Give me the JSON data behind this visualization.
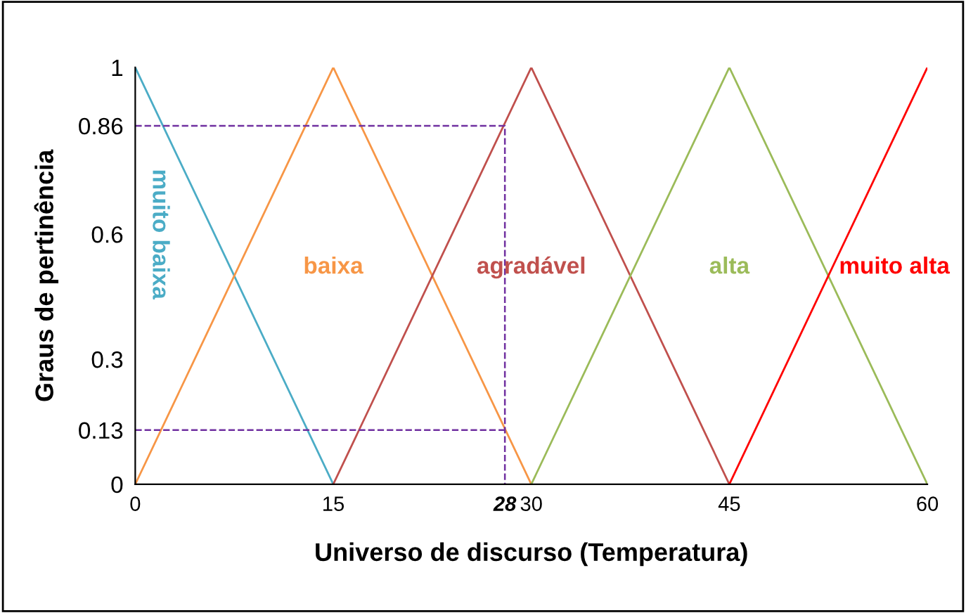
{
  "chart_data": {
    "type": "line",
    "xlabel": "Universo de discurso (Temperatura)",
    "ylabel": "Graus de pertinência",
    "series": [
      {
        "name": "muito baixa",
        "color": "#4bacc6",
        "x": [
          0,
          15
        ],
        "values": [
          1,
          0
        ]
      },
      {
        "name": "baixa",
        "color": "#f79646",
        "x": [
          0,
          15,
          30
        ],
        "values": [
          0,
          1,
          0
        ]
      },
      {
        "name": "agradável",
        "color": "#c0504d",
        "x": [
          15,
          30,
          45
        ],
        "values": [
          0,
          1,
          0
        ]
      },
      {
        "name": "alta",
        "color": "#9bbb59",
        "x": [
          30,
          45,
          60
        ],
        "values": [
          0,
          1,
          0
        ]
      },
      {
        "name": "muito alta",
        "color": "#ff0000",
        "x": [
          45,
          60
        ],
        "values": [
          0,
          1
        ]
      },
      {
        "color": "#7030a0",
        "x": [
          0,
          28,
          28
        ],
        "values": [
          0.86,
          0.86,
          0
        ],
        "line_style": "dashed"
      },
      {
        "color": "#7030a0",
        "x": [
          0,
          28
        ],
        "values": [
          0.13,
          0.13
        ],
        "line_style": "dashed"
      }
    ],
    "xlim": [
      0,
      60
    ],
    "ylim": [
      0,
      1
    ],
    "xticks": [
      0,
      15,
      {
        "value": 28,
        "label": "28"
      },
      30,
      45,
      60
    ],
    "yticks": [
      0,
      0.13,
      0.3,
      0.6,
      0.86,
      1
    ],
    "grid": false,
    "legend": false,
    "marker": "none",
    "line_style": "solid"
  }
}
